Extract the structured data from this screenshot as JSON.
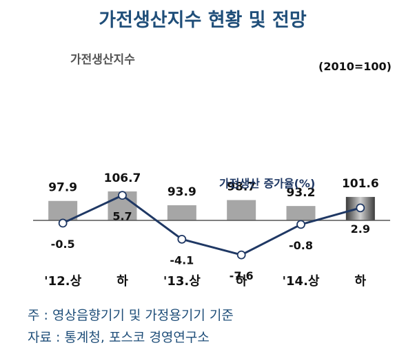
{
  "title": "가전생산지수 현황 및 전망",
  "notes": {
    "note1": "주 : 영상음향기기 및 가정용기기 기준",
    "note2": "자료 : 통계청, 포스코 경영연구소"
  },
  "chart_data": {
    "type": "bar",
    "title": "가전생산지수 현황 및 전망",
    "categories": [
      "'12.상",
      "하",
      "'13.상",
      "하",
      "'14.상",
      "하"
    ],
    "bars": {
      "name": "가전생산지수",
      "unit": "(2010=100)",
      "values": [
        97.9,
        106.7,
        93.9,
        98.7,
        93.2,
        101.6
      ],
      "labels": [
        "97.9",
        "106.7",
        "93.9",
        "98.7",
        "93.2",
        "101.6"
      ],
      "color": "#a6a6a6",
      "forecast_index": 5
    },
    "line": {
      "type": "line",
      "name": "가전생산 증가율(%)",
      "values": [
        -0.5,
        5.7,
        -4.1,
        -7.6,
        -0.8,
        2.9
      ],
      "labels": [
        "-0.5",
        "5.7",
        "-4.1",
        "-7.6",
        "-0.8",
        "2.9"
      ],
      "color": "#1f3864"
    },
    "grid": false,
    "legend": "none"
  }
}
